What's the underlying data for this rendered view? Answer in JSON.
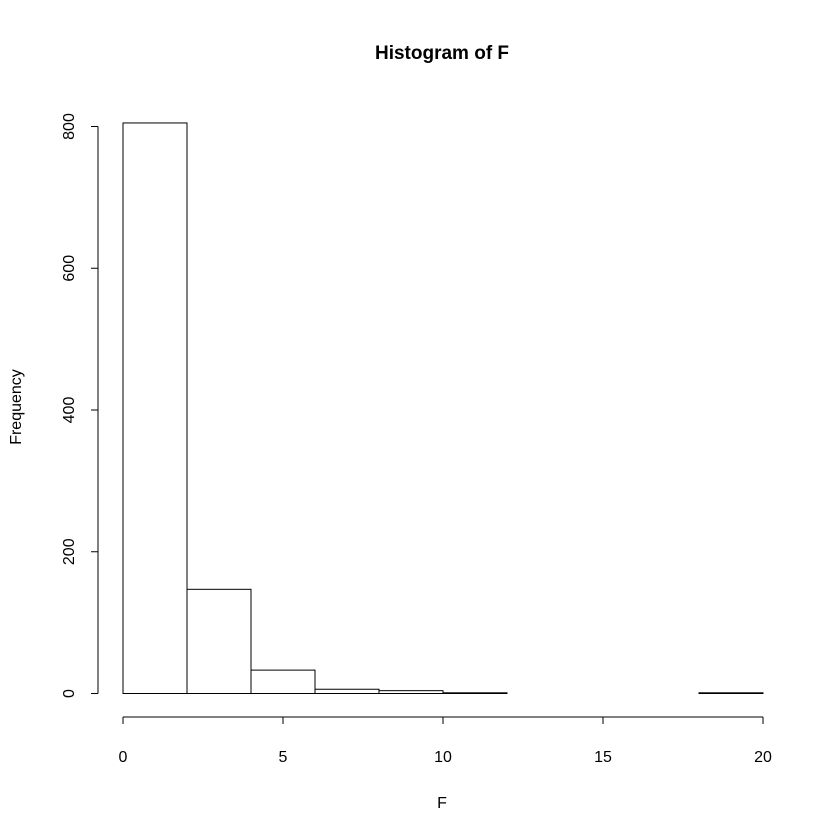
{
  "chart_data": {
    "type": "bar",
    "title": "Histogram of F",
    "xlabel": "F",
    "ylabel": "Frequency",
    "bin_edges": [
      0,
      2,
      4,
      6,
      8,
      10,
      12,
      14,
      16,
      18,
      20
    ],
    "values": [
      805,
      147,
      33,
      6,
      4,
      1,
      0,
      0,
      0,
      1
    ],
    "xlim": [
      0,
      20
    ],
    "ylim": [
      0,
      800
    ],
    "x_ticks": [
      0,
      5,
      10,
      15,
      20
    ],
    "y_ticks": [
      0,
      200,
      400,
      600,
      800
    ],
    "grid": false,
    "colors": {
      "bar_fill": "#ffffff",
      "bar_stroke": "#000000"
    }
  }
}
